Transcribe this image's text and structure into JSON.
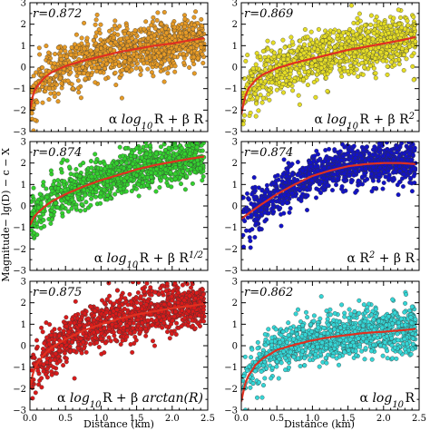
{
  "chart_data": [
    {
      "type": "scatter",
      "r_label": "r=0.872",
      "formula_parts": [
        "α ",
        "log",
        "10",
        "R + β R"
      ],
      "color": "#E69A25",
      "xlim": [
        0,
        2.5
      ],
      "ylim": [
        -3,
        3
      ],
      "x_ticks": [
        "0.0",
        "0.5",
        "1.0",
        "1.5",
        "2.0",
        "2.5"
      ],
      "y_ticks": [
        "−3",
        "−2",
        "−1",
        "0",
        "1",
        "2",
        "3"
      ],
      "fit_curve": {
        "x": [
          0.0,
          0.05,
          0.1,
          0.2,
          0.3,
          0.5,
          0.75,
          1.0,
          1.25,
          1.5,
          1.75,
          2.0,
          2.25,
          2.45
        ],
        "y": [
          -2.0,
          -1.2,
          -0.9,
          -0.5,
          -0.25,
          0.05,
          0.3,
          0.5,
          0.7,
          0.85,
          1.0,
          1.1,
          1.25,
          1.35
        ]
      },
      "scatter_spread": 0.55
    },
    {
      "type": "scatter",
      "r_label": "r=0.869",
      "formula_parts": [
        "α ",
        "log",
        "10",
        "R + β R",
        "2"
      ],
      "color": "#E5DD25",
      "xlim": [
        0,
        2.5
      ],
      "ylim": [
        -3,
        3
      ],
      "x_ticks": [
        "0.0",
        "0.5",
        "1.0",
        "1.5",
        "2.0",
        "2.5"
      ],
      "y_ticks": [
        "−3",
        "−2",
        "−1",
        "0",
        "1",
        "2",
        "3"
      ],
      "fit_curve": {
        "x": [
          0.0,
          0.05,
          0.1,
          0.2,
          0.3,
          0.5,
          0.75,
          1.0,
          1.25,
          1.5,
          1.75,
          2.0,
          2.25,
          2.45
        ],
        "y": [
          -2.2,
          -1.4,
          -1.0,
          -0.6,
          -0.35,
          -0.05,
          0.2,
          0.4,
          0.6,
          0.8,
          0.95,
          1.1,
          1.25,
          1.4
        ]
      },
      "scatter_spread": 0.55
    },
    {
      "type": "scatter",
      "r_label": "r=0.874",
      "formula_parts": [
        "α ",
        "log",
        "10",
        "R + β R",
        "1/2"
      ],
      "color": "#33D12E",
      "xlim": [
        0,
        2.5
      ],
      "ylim": [
        -3,
        3
      ],
      "x_ticks": [
        "0.0",
        "0.5",
        "1.0",
        "1.5",
        "2.0",
        "2.5"
      ],
      "y_ticks": [
        "−3",
        "−2",
        "−1",
        "0",
        "1",
        "2",
        "3"
      ],
      "fit_curve": {
        "x": [
          0.0,
          0.05,
          0.1,
          0.2,
          0.3,
          0.5,
          0.75,
          1.0,
          1.25,
          1.5,
          1.75,
          2.0,
          2.25,
          2.45
        ],
        "y": [
          -0.9,
          -0.55,
          -0.35,
          -0.05,
          0.2,
          0.55,
          0.9,
          1.2,
          1.45,
          1.7,
          1.9,
          2.05,
          2.2,
          2.3
        ]
      },
      "scatter_spread": 0.5
    },
    {
      "type": "scatter",
      "r_label": "r=0.874",
      "formula_parts": [
        "α R",
        "2",
        " + β R"
      ],
      "color": "#1212C8",
      "xlim": [
        0,
        2.5
      ],
      "ylim": [
        -3,
        3
      ],
      "x_ticks": [
        "0.0",
        "0.5",
        "1.0",
        "1.5",
        "2.0",
        "2.5"
      ],
      "y_ticks": [
        "−3",
        "−2",
        "−1",
        "0",
        "1",
        "2",
        "3"
      ],
      "fit_curve": {
        "x": [
          0.0,
          0.1,
          0.25,
          0.5,
          0.75,
          1.0,
          1.25,
          1.5,
          1.75,
          2.0,
          2.25,
          2.45
        ],
        "y": [
          -0.6,
          -0.35,
          0.0,
          0.55,
          1.0,
          1.4,
          1.65,
          1.85,
          1.95,
          2.0,
          2.0,
          1.95
        ]
      },
      "scatter_spread": 0.5
    },
    {
      "type": "scatter",
      "r_label": "r=0.875",
      "formula_parts": [
        "α ",
        "log",
        "10",
        "R + β ",
        "arctan(R)"
      ],
      "color": "#D91A1A",
      "xlim": [
        0,
        2.5
      ],
      "ylim": [
        -3,
        3
      ],
      "x_ticks": [
        "0.0",
        "0.5",
        "1.0",
        "1.5",
        "2.0",
        "2.5"
      ],
      "y_ticks": [
        "−3",
        "−2",
        "−1",
        "0",
        "1",
        "2",
        "3"
      ],
      "fit_curve": {
        "x": [
          0.0,
          0.05,
          0.1,
          0.2,
          0.3,
          0.5,
          0.75,
          1.0,
          1.25,
          1.5,
          1.75,
          2.0,
          2.25,
          2.45
        ],
        "y": [
          -1.9,
          -1.2,
          -0.85,
          -0.4,
          -0.1,
          0.3,
          0.7,
          1.0,
          1.25,
          1.45,
          1.6,
          1.75,
          1.85,
          1.95
        ]
      },
      "scatter_spread": 0.55
    },
    {
      "type": "scatter",
      "r_label": "r=0.862",
      "formula_parts": [
        "α ",
        "log",
        "10",
        "R"
      ],
      "color": "#34D6D6",
      "xlim": [
        0,
        2.5
      ],
      "ylim": [
        -3,
        3
      ],
      "x_ticks": [
        "0.0",
        "0.5",
        "1.0",
        "1.5",
        "2.0",
        "2.5"
      ],
      "y_ticks": [
        "−3",
        "−2",
        "−1",
        "0",
        "1",
        "2",
        "3"
      ],
      "fit_curve": {
        "x": [
          0.0,
          0.05,
          0.1,
          0.2,
          0.3,
          0.5,
          0.75,
          1.0,
          1.25,
          1.5,
          1.75,
          2.0,
          2.25,
          2.45
        ],
        "y": [
          -2.6,
          -1.8,
          -1.4,
          -0.9,
          -0.6,
          -0.2,
          0.05,
          0.25,
          0.4,
          0.5,
          0.6,
          0.65,
          0.72,
          0.78
        ]
      },
      "scatter_spread": 0.55
    }
  ],
  "axis_titles": {
    "x": "Distance (km)",
    "y": "Magnitude− lg(D) − c − X"
  },
  "fit_color": "#E03020"
}
